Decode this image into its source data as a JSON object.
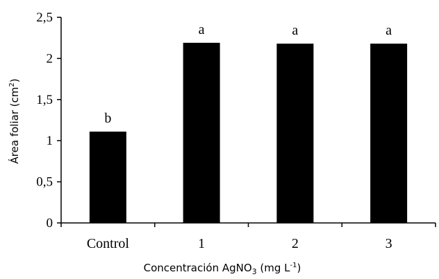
{
  "chart_data": {
    "type": "bar",
    "title": "",
    "xlabel": "Concentración AgNO3 (mg L-1)",
    "xlabel_parts": {
      "main": "Concentración AgNO",
      "sub": "3",
      "unit_open": " (mg L",
      "sup": "-1",
      "unit_close": ")"
    },
    "ylabel": "Área foliar (cm2)",
    "ylabel_parts": {
      "main": "Área foliar (cm",
      "sup": "2",
      "close": ")"
    },
    "categories": [
      "Control",
      "1",
      "2",
      "3"
    ],
    "values": [
      1.11,
      2.19,
      2.18,
      2.18
    ],
    "significance_letters": [
      "b",
      "a",
      "a",
      "a"
    ],
    "ylim": [
      0,
      2.5
    ],
    "yticks": [
      0,
      0.5,
      1,
      1.5,
      2,
      2.5
    ],
    "ytick_labels": [
      "0",
      "0,5",
      "1",
      "1,5",
      "2",
      "2,5"
    ],
    "grid": false,
    "legend": null,
    "bar_color": "#000000"
  }
}
